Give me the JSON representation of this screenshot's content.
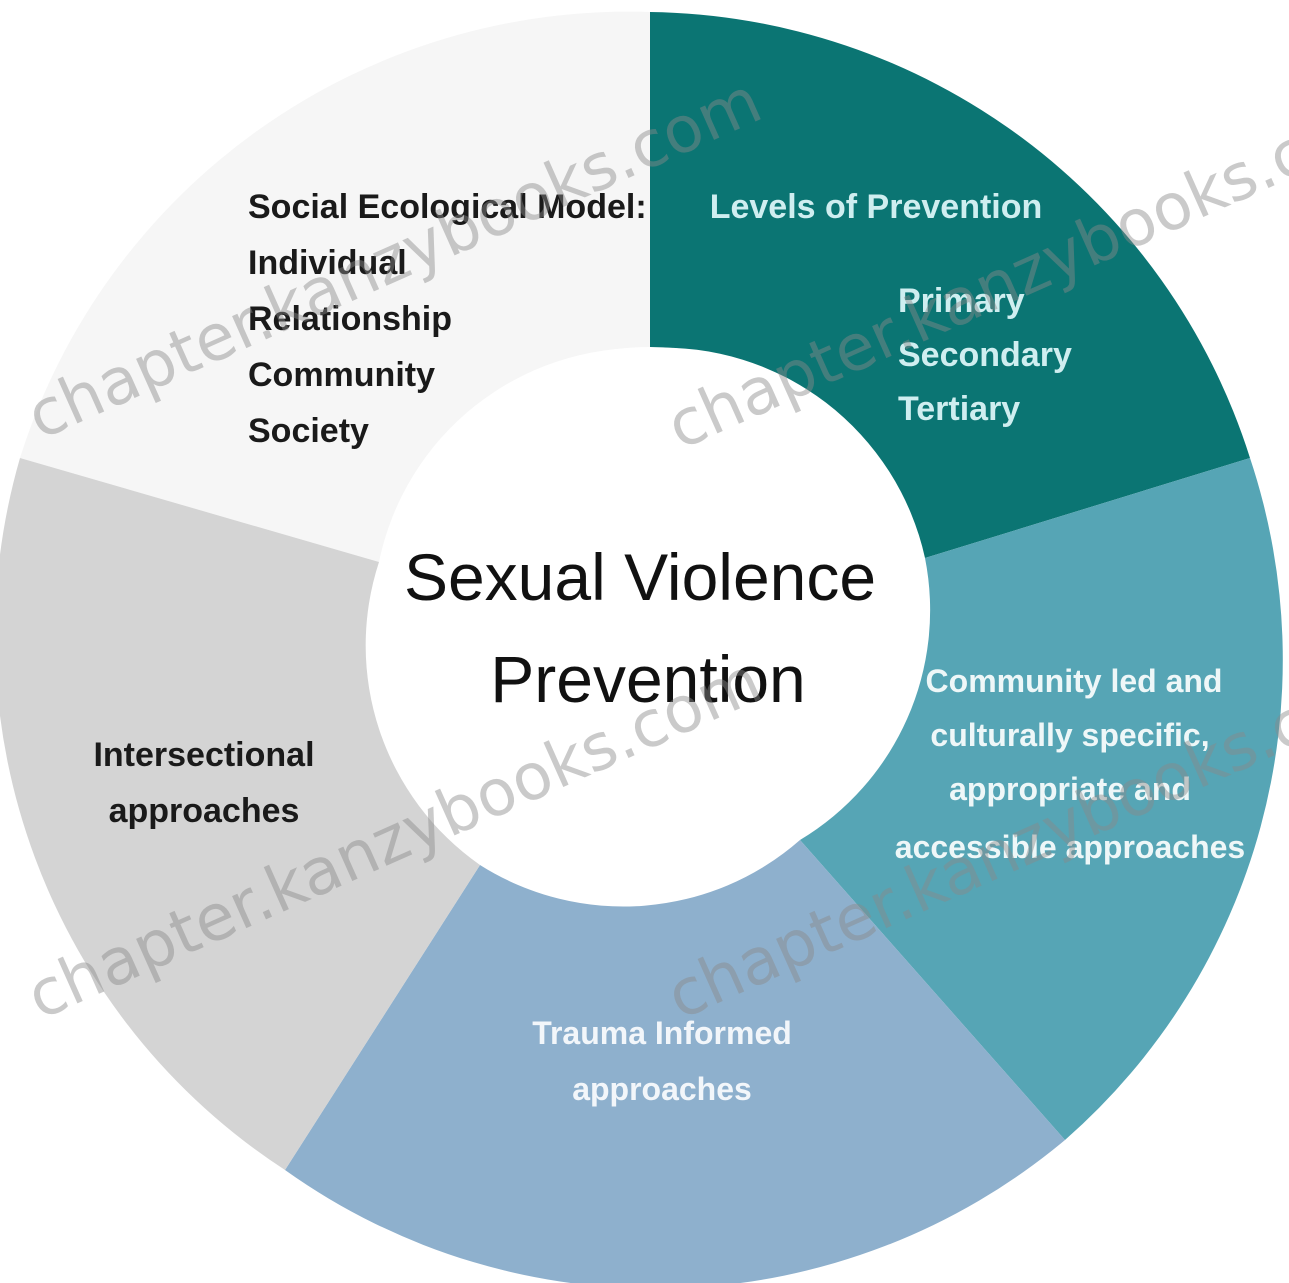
{
  "center": {
    "line1": "Sexual Violence",
    "line2": "Prevention"
  },
  "segments": [
    {
      "id": "social-ecological",
      "color": "#f6f6f6",
      "text_color": "#1a1a1a",
      "lines": [
        "Social Ecological Model:",
        "Individual",
        "Relationship",
        "Community",
        "Society"
      ]
    },
    {
      "id": "levels",
      "color": "#0b7573",
      "text_color": "#cfeef0",
      "lines": [
        "Levels of Prevention",
        "Primary",
        "Secondary",
        "Tertiary"
      ]
    },
    {
      "id": "community-led",
      "color": "#56a5b5",
      "text_color": "#eef7f8",
      "lines": [
        "Community led and",
        "culturally specific,",
        "appropriate and",
        "accessible approaches"
      ]
    },
    {
      "id": "trauma",
      "color": "#8eb0cd",
      "text_color": "#f2f6fa",
      "lines": [
        "Trauma Informed",
        "approaches"
      ]
    },
    {
      "id": "intersectional",
      "color": "#d4d4d4",
      "text_color": "#1a1a1a",
      "lines": [
        "Intersectional",
        "approaches"
      ]
    }
  ],
  "watermark": "chapter.kanzybooks.com"
}
